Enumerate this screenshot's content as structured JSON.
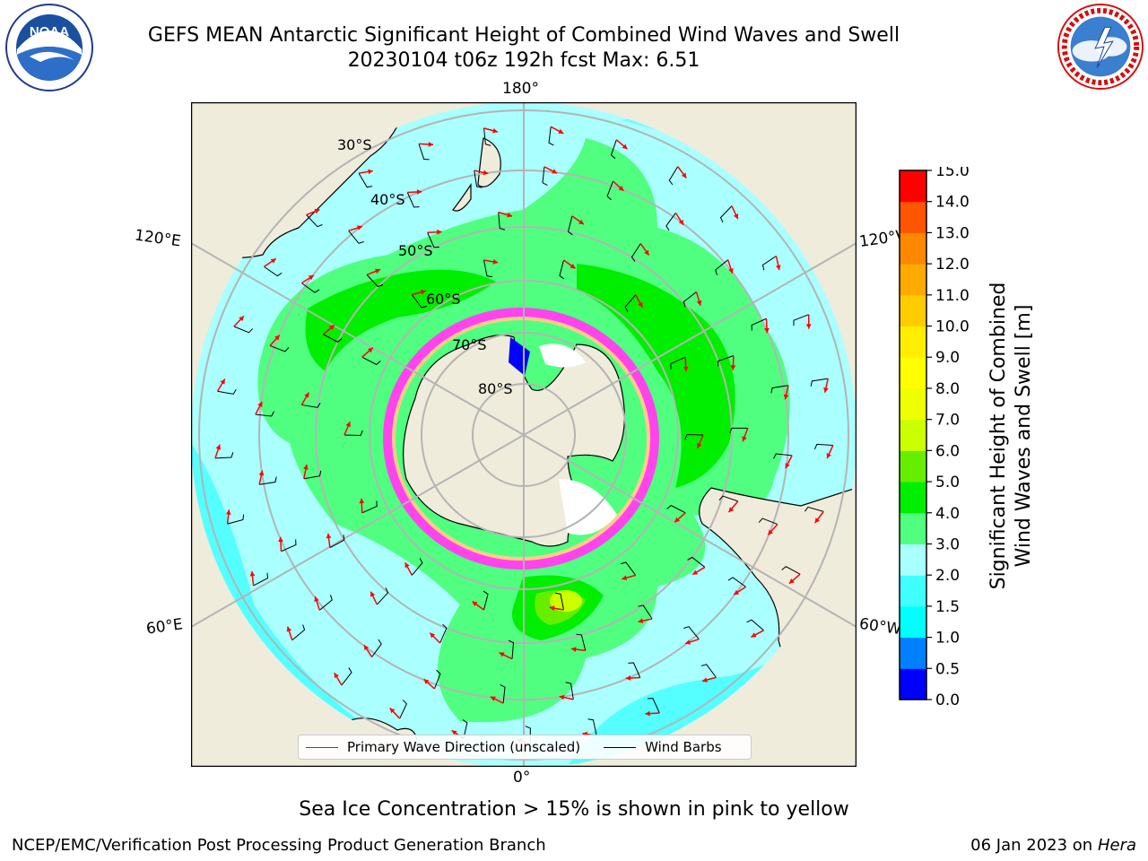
{
  "title": {
    "line1": "GEFS MEAN Antarctic Significant Height of Combined Wind Waves and Swell",
    "line2": "20230104 t06z 192h fcst   Max: 6.51"
  },
  "logos": {
    "left": {
      "text": "NOAA",
      "ring_text": "NATIONAL OCEANIC AND ATMOSPHERIC ADMINISTRATION · U.S. DEPARTMENT OF COMMERCE"
    },
    "right": {
      "ring_text": "NATIONAL WEATHER SERVICE"
    }
  },
  "map": {
    "projection": "south-polar-stereographic",
    "longitude_labels": {
      "top": "180°",
      "bottom": "0°",
      "upper_left": "120°E",
      "upper_right": "120°W",
      "lower_left": "60°E",
      "lower_right": "60°W"
    },
    "latitude_labels": [
      "30°S",
      "40°S",
      "50°S",
      "60°S",
      "70°S",
      "80°S"
    ],
    "colors": {
      "land": "#efecdc",
      "ocean_low": "#aaffff",
      "graticule": "#b4b4b4",
      "coast": "#000000"
    }
  },
  "legend": {
    "items": [
      {
        "label": "Primary Wave Direction (unscaled)",
        "color": "#ff0000"
      },
      {
        "label": "Wind Barbs",
        "color": "#000000"
      }
    ]
  },
  "colorbar": {
    "label_line1": "Significant Height of Combined",
    "label_line2": "Wind Waves and Swell [m]",
    "ticks": [
      "0.0",
      "0.5",
      "1.0",
      "1.5",
      "2.0",
      "3.0",
      "4.0",
      "5.0",
      "6.0",
      "7.0",
      "8.0",
      "9.0",
      "10.0",
      "11.0",
      "12.0",
      "13.0",
      "14.0",
      "15.0"
    ],
    "colors": [
      "#0000ff",
      "#0080ff",
      "#00ffff",
      "#40ffff",
      "#aaffff",
      "#50ff80",
      "#00ee00",
      "#66ee00",
      "#ccff00",
      "#eeff00",
      "#ffff00",
      "#ffee00",
      "#ffcc00",
      "#ffaa00",
      "#ff8800",
      "#ff5500",
      "#ff0000"
    ]
  },
  "chart_data": {
    "type": "heatmap",
    "variable": "Significant Height of Combined Wind Waves and Swell",
    "units": "m",
    "max_value": 6.51,
    "value_range": [
      0,
      15
    ],
    "features": {
      "sea_ice": "Sea Ice Concentration > 15% is shown in pink to yellow",
      "vectors": [
        "Primary Wave Direction (unscaled)",
        "Wind Barbs"
      ]
    }
  },
  "sea_ice_note": "Sea Ice Concentration > 15% is shown in pink to yellow",
  "footer": {
    "left": "NCEP/EMC/Verification Post Processing Product Generation Branch",
    "right_date": "06 Jan 2023 on ",
    "right_host": "Hera"
  }
}
